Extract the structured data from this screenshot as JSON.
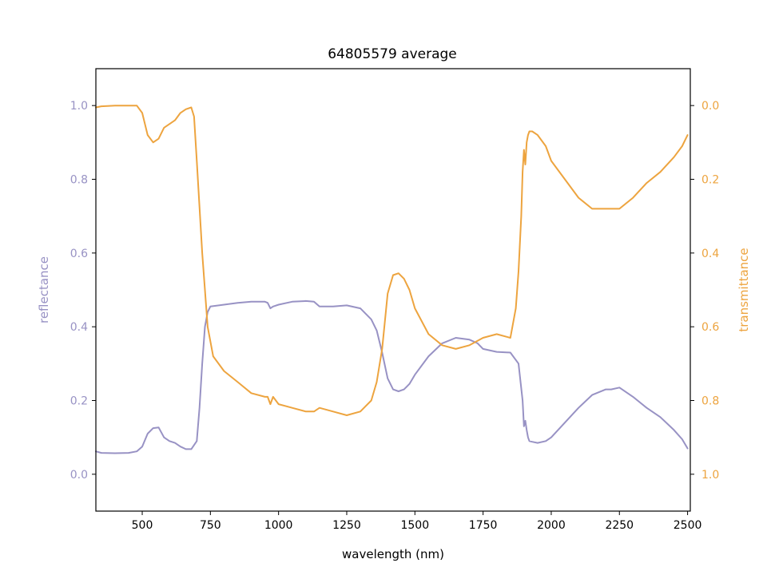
{
  "chart_data": {
    "type": "line",
    "title": "64805579 average",
    "xlabel": "wavelength (nm)",
    "ylabel_left": "reflectance",
    "ylabel_right": "transmittance",
    "xlim": [
      330,
      2510
    ],
    "ylim_left": [
      -0.1,
      1.1
    ],
    "ylim_right": [
      1.1,
      -0.1
    ],
    "right_axis_inverted": true,
    "grid": false,
    "legend": "none",
    "x_ticks": [
      500,
      750,
      1000,
      1250,
      1500,
      1750,
      2000,
      2250,
      2500
    ],
    "x_tick_labels": [
      "500",
      "750",
      "1000",
      "1250",
      "1500",
      "1750",
      "2000",
      "2250",
      "2500"
    ],
    "y_left_ticks": [
      0.0,
      0.2,
      0.4,
      0.6,
      0.8,
      1.0
    ],
    "y_left_tick_labels": [
      "0.0",
      "0.2",
      "0.4",
      "0.6",
      "0.8",
      "1.0"
    ],
    "y_right_ticks": [
      0.0,
      0.2,
      0.4,
      0.6,
      0.8,
      1.0
    ],
    "y_right_tick_labels": [
      "0.0",
      "0.2",
      "0.4",
      "0.6",
      "0.8",
      "1.0"
    ],
    "colors": {
      "reflectance": "#9892c4",
      "transmittance": "#eda43f"
    },
    "series": [
      {
        "axis": "left",
        "x": [
          330,
          350,
          400,
          450,
          480,
          500,
          520,
          540,
          560,
          580,
          600,
          620,
          640,
          660,
          680,
          700,
          710,
          720,
          730,
          740,
          750,
          800,
          850,
          900,
          950,
          960,
          970,
          980,
          1000,
          1050,
          1100,
          1130,
          1150,
          1200,
          1250,
          1300,
          1340,
          1360,
          1380,
          1400,
          1420,
          1440,
          1460,
          1480,
          1500,
          1550,
          1600,
          1650,
          1700,
          1730,
          1750,
          1800,
          1850,
          1880,
          1895,
          1900,
          1905,
          1910,
          1915,
          1920,
          1930,
          1950,
          1980,
          2000,
          2050,
          2100,
          2150,
          2200,
          2220,
          2250,
          2300,
          2350,
          2400,
          2450,
          2480,
          2500
        ],
        "y": [
          0.062,
          0.058,
          0.057,
          0.058,
          0.062,
          0.075,
          0.11,
          0.125,
          0.127,
          0.1,
          0.09,
          0.085,
          0.075,
          0.068,
          0.068,
          0.09,
          0.18,
          0.3,
          0.4,
          0.44,
          0.455,
          0.46,
          0.465,
          0.468,
          0.468,
          0.465,
          0.45,
          0.455,
          0.46,
          0.468,
          0.47,
          0.468,
          0.455,
          0.455,
          0.458,
          0.45,
          0.42,
          0.39,
          0.33,
          0.26,
          0.23,
          0.225,
          0.23,
          0.245,
          0.27,
          0.32,
          0.355,
          0.37,
          0.365,
          0.355,
          0.34,
          0.332,
          0.33,
          0.3,
          0.2,
          0.13,
          0.145,
          0.12,
          0.1,
          0.09,
          0.088,
          0.085,
          0.09,
          0.1,
          0.14,
          0.18,
          0.215,
          0.23,
          0.23,
          0.235,
          0.21,
          0.18,
          0.155,
          0.12,
          0.095,
          0.07
        ]
      },
      {
        "axis": "right",
        "x": [
          330,
          350,
          400,
          450,
          480,
          500,
          520,
          540,
          560,
          580,
          600,
          620,
          640,
          660,
          680,
          690,
          700,
          720,
          740,
          760,
          800,
          850,
          900,
          950,
          960,
          970,
          980,
          1000,
          1050,
          1100,
          1130,
          1150,
          1200,
          1250,
          1300,
          1340,
          1360,
          1380,
          1400,
          1420,
          1440,
          1460,
          1480,
          1500,
          1550,
          1600,
          1650,
          1700,
          1750,
          1800,
          1850,
          1870,
          1880,
          1890,
          1895,
          1900,
          1905,
          1910,
          1915,
          1920,
          1930,
          1950,
          1980,
          2000,
          2050,
          2100,
          2150,
          2200,
          2250,
          2300,
          2350,
          2400,
          2450,
          2480,
          2500
        ],
        "y": [
          0.005,
          0.002,
          0.0,
          0.0,
          0.0,
          0.02,
          0.08,
          0.1,
          0.09,
          0.06,
          0.05,
          0.04,
          0.02,
          0.01,
          0.005,
          0.03,
          0.15,
          0.4,
          0.6,
          0.68,
          0.72,
          0.75,
          0.78,
          0.79,
          0.79,
          0.81,
          0.79,
          0.81,
          0.82,
          0.83,
          0.83,
          0.82,
          0.83,
          0.84,
          0.83,
          0.8,
          0.75,
          0.66,
          0.51,
          0.46,
          0.455,
          0.47,
          0.5,
          0.55,
          0.62,
          0.65,
          0.66,
          0.65,
          0.63,
          0.62,
          0.63,
          0.55,
          0.45,
          0.3,
          0.18,
          0.12,
          0.16,
          0.1,
          0.08,
          0.07,
          0.07,
          0.08,
          0.11,
          0.15,
          0.2,
          0.25,
          0.28,
          0.28,
          0.28,
          0.25,
          0.21,
          0.18,
          0.14,
          0.11,
          0.08
        ]
      }
    ]
  }
}
